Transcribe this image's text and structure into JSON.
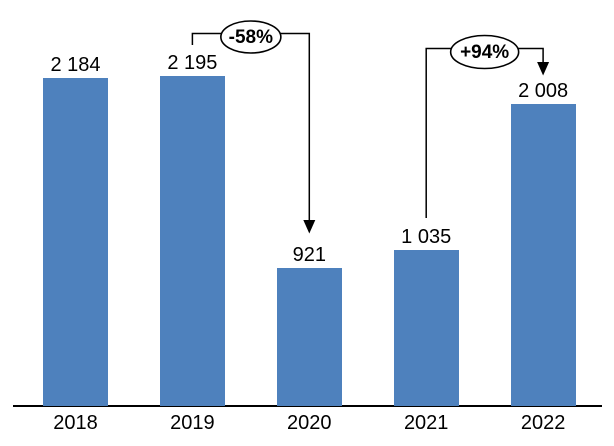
{
  "chart_data": {
    "type": "bar",
    "title": "",
    "xlabel": "",
    "ylabel": "",
    "categories": [
      "2018",
      "2019",
      "2020",
      "2021",
      "2022"
    ],
    "values": [
      2184,
      2195,
      921,
      1035,
      2008
    ],
    "value_labels": [
      "2 184",
      "2 195",
      "921",
      "1 035",
      "2 008"
    ],
    "ylim": [
      0,
      2700
    ],
    "grid": false,
    "legend": false,
    "y_axis_shown": false,
    "colors": {
      "bar": "#4E81BD",
      "axis": "#000000",
      "text": "#000000",
      "annotation_fill": "#FFFFFF",
      "annotation_border": "#000000"
    },
    "annotations": [
      {
        "label": "-58%",
        "from_category": "2019",
        "to_category": "2020",
        "meaning": "change from 2019 to 2020"
      },
      {
        "label": "+94%",
        "from_category": "2021",
        "to_category": "2022",
        "meaning": "change from 2021 to 2022"
      }
    ]
  }
}
